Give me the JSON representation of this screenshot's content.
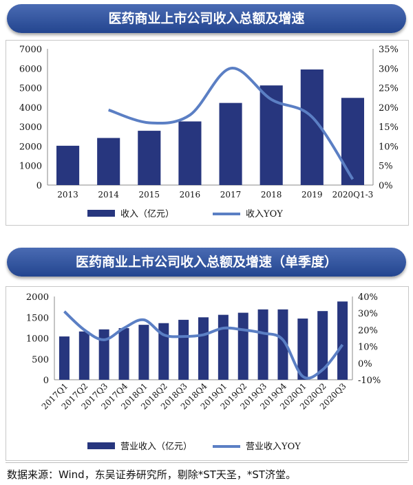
{
  "colors": {
    "bar": "#27367e",
    "line": "#5b7fc4",
    "banner": "#2f52a0"
  },
  "chart_data": [
    {
      "type": "bar+line",
      "title": "医药商业上市公司收入总额及增速",
      "categories": [
        "2013",
        "2014",
        "2015",
        "2016",
        "2017",
        "2018",
        "2019",
        "2020Q1-3"
      ],
      "series": [
        {
          "name": "收入（亿元）",
          "type": "bar",
          "axis": "left",
          "values": [
            2020,
            2420,
            2790,
            3270,
            4220,
            5120,
            5940,
            4480
          ]
        },
        {
          "name": "收入YOY",
          "type": "line",
          "axis": "right",
          "values": [
            null,
            19.3,
            16.0,
            18.0,
            30.0,
            22.0,
            17.5,
            1.5
          ]
        }
      ],
      "y_left": {
        "min": 0,
        "max": 7000,
        "ticks": [
          "0",
          "1000",
          "2000",
          "3000",
          "4000",
          "5000",
          "6000",
          "7000"
        ]
      },
      "y_right": {
        "min": 0,
        "max": 35,
        "ticks": [
          "0%",
          "5%",
          "10%",
          "15%",
          "20%",
          "25%",
          "30%",
          "35%"
        ]
      },
      "legend_position": "bottom",
      "grid": false
    },
    {
      "type": "bar+line",
      "title": "医药商业上市公司收入总额及增速（单季度）",
      "categories": [
        "2017Q1",
        "2017Q2",
        "2017Q3",
        "2017Q4",
        "2018Q1",
        "2018Q2",
        "2018Q3",
        "2018Q4",
        "2019Q1",
        "2019Q2",
        "2019Q3",
        "2019Q4",
        "2020Q1",
        "2020Q2",
        "2020Q3"
      ],
      "series": [
        {
          "name": "营业收入（亿元）",
          "type": "bar",
          "axis": "left",
          "values": [
            1040,
            1160,
            1210,
            1240,
            1320,
            1360,
            1440,
            1500,
            1560,
            1610,
            1690,
            1690,
            1470,
            1650,
            1880
          ]
        },
        {
          "name": "营业收入YOY",
          "type": "line",
          "axis": "right",
          "values": [
            31,
            20,
            14,
            21,
            26,
            17,
            16,
            17,
            21,
            20,
            18,
            14,
            -8,
            -4,
            11
          ]
        }
      ],
      "y_left": {
        "min": 0,
        "max": 2000,
        "ticks": [
          "0",
          "500",
          "1000",
          "1500",
          "2000"
        ]
      },
      "y_right": {
        "min": -10,
        "max": 40,
        "ticks": [
          "-10%",
          "0%",
          "10%",
          "20%",
          "30%",
          "40%"
        ]
      },
      "legend_position": "bottom",
      "grid": false
    }
  ],
  "source": "数据来源：Wind，东吴证券研究所，剔除*ST天圣，*ST济堂。"
}
